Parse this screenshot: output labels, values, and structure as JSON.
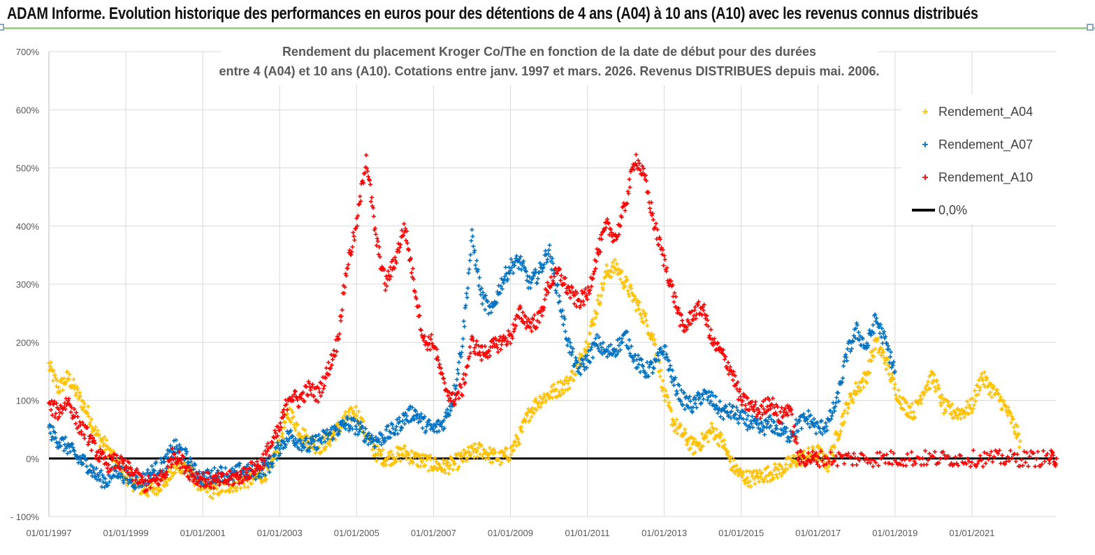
{
  "banner": {
    "title": "ADAM Informe. Evolution historique des performances en euros pour des détentions de 4 ans (A04) à 10 ans (A10) avec les revenus connus distribués"
  },
  "colors": {
    "A04": "#ffc000",
    "A07": "#0070c0",
    "A10": "#ff0000",
    "zero": "#000000",
    "grid": "#d9d9d9",
    "banner_rule": "#9fd47e"
  },
  "chart_data": {
    "type": "scatter",
    "title_line1": "Rendement du placement Kroger Co/The en fonction de la date de début pour des durées",
    "title_line2": "entre 4 (A04) et 10 ans (A10). Cotations entre janv. 1997 et mars. 2026. Revenus DISTRIBUES depuis mai. 2006.",
    "xlim": [
      1997.0,
      2023.2
    ],
    "ylim": [
      -100,
      700
    ],
    "y_ticks": [
      -100,
      0,
      100,
      200,
      300,
      400,
      500,
      600,
      700
    ],
    "y_tick_labels": [
      "- 100%",
      "0%",
      "100%",
      "200%",
      "300%",
      "400%",
      "500%",
      "600%",
      "700%"
    ],
    "x_tick_values": [
      1997,
      1999,
      2001,
      2003,
      2005,
      2007,
      2009,
      2011,
      2013,
      2015,
      2017,
      2019,
      2021
    ],
    "x_tick_labels": [
      "01/01/1997",
      "01/01/1999",
      "01/01/2001",
      "01/01/2003",
      "01/01/2005",
      "01/01/2007",
      "01/01/2009",
      "01/01/2011",
      "01/01/2013",
      "01/01/2015",
      "01/01/2017",
      "01/01/2019",
      "01/01/2021"
    ],
    "legend_position": "top-right",
    "series": [
      {
        "name": "Rendement_A04",
        "legend": "Rendement_A04",
        "marker": "plus",
        "x": [
          1997.0,
          1997.25,
          1997.5,
          1997.75,
          1998.0,
          1998.25,
          1998.5,
          1998.75,
          1999.0,
          1999.25,
          1999.5,
          1999.75,
          2000.0,
          2000.25,
          2000.5,
          2000.75,
          2001.0,
          2001.25,
          2001.5,
          2001.75,
          2002.0,
          2002.25,
          2002.5,
          2002.75,
          2003.0,
          2003.25,
          2003.5,
          2003.75,
          2004.0,
          2004.25,
          2004.5,
          2004.75,
          2005.0,
          2005.25,
          2005.5,
          2005.75,
          2006.0,
          2006.25,
          2006.5,
          2006.75,
          2007.0,
          2007.25,
          2007.5,
          2007.75,
          2008.0,
          2008.25,
          2008.5,
          2008.75,
          2009.0,
          2009.25,
          2009.5,
          2009.75,
          2010.0,
          2010.25,
          2010.5,
          2010.75,
          2011.0,
          2011.25,
          2011.5,
          2011.75,
          2012.0,
          2012.25,
          2012.5,
          2012.75,
          2013.0,
          2013.25,
          2013.5,
          2013.75,
          2014.0,
          2014.25,
          2014.5,
          2014.75,
          2015.0,
          2015.25,
          2015.5,
          2015.75,
          2016.0,
          2016.25,
          2016.5,
          2016.75,
          2017.0,
          2017.25,
          2017.5,
          2017.75,
          2018.0,
          2018.25,
          2018.5,
          2018.75,
          2019.0,
          2019.25,
          2019.5,
          2019.75,
          2020.0,
          2020.25,
          2020.5,
          2020.75,
          2021.0,
          2021.25,
          2021.5,
          2021.75,
          2022.0,
          2022.25
        ],
        "y": [
          160,
          120,
          140,
          110,
          80,
          40,
          20,
          -10,
          -30,
          -45,
          -55,
          -50,
          -40,
          -20,
          -10,
          -30,
          -50,
          -55,
          -50,
          -45,
          -40,
          -35,
          -30,
          -20,
          30,
          80,
          50,
          30,
          20,
          30,
          50,
          70,
          80,
          40,
          10,
          0,
          5,
          10,
          0,
          -5,
          -10,
          -15,
          -10,
          0,
          10,
          15,
          5,
          0,
          10,
          40,
          80,
          100,
          110,
          120,
          130,
          160,
          200,
          260,
          320,
          330,
          300,
          270,
          240,
          200,
          110,
          60,
          40,
          20,
          30,
          50,
          30,
          -10,
          -30,
          -35,
          -30,
          -25,
          -20,
          -10,
          0,
          5,
          10,
          -10,
          40,
          90,
          120,
          140,
          200,
          170,
          120,
          90,
          80,
          120,
          140,
          90,
          80,
          80,
          90,
          140,
          120,
          100,
          70,
          30
        ]
      },
      {
        "name": "Rendement_A07",
        "legend": "Rendement_A07",
        "marker": "plus",
        "x": [
          1997.0,
          1997.25,
          1997.5,
          1997.75,
          1998.0,
          1998.25,
          1998.5,
          1998.75,
          1999.0,
          1999.25,
          1999.5,
          1999.75,
          2000.0,
          2000.25,
          2000.5,
          2000.75,
          2001.0,
          2001.25,
          2001.5,
          2001.75,
          2002.0,
          2002.25,
          2002.5,
          2002.75,
          2003.0,
          2003.25,
          2003.5,
          2003.75,
          2004.0,
          2004.25,
          2004.5,
          2004.75,
          2005.0,
          2005.25,
          2005.5,
          2005.75,
          2006.0,
          2006.25,
          2006.5,
          2006.75,
          2007.0,
          2007.25,
          2007.5,
          2007.75,
          2008.0,
          2008.25,
          2008.5,
          2008.75,
          2009.0,
          2009.25,
          2009.5,
          2009.75,
          2010.0,
          2010.25,
          2010.5,
          2010.75,
          2011.0,
          2011.25,
          2011.5,
          2011.75,
          2012.0,
          2012.25,
          2012.5,
          2012.75,
          2013.0,
          2013.25,
          2013.5,
          2013.75,
          2014.0,
          2014.25,
          2014.5,
          2014.75,
          2015.0,
          2015.25,
          2015.5,
          2015.75,
          2016.0,
          2016.25,
          2016.5,
          2016.75,
          2017.0,
          2017.25,
          2017.5,
          2017.75,
          2018.0,
          2018.25,
          2018.5,
          2018.75,
          2019.0
        ],
        "y": [
          50,
          30,
          20,
          0,
          -10,
          -30,
          -40,
          -20,
          -30,
          -40,
          -35,
          -20,
          -10,
          20,
          10,
          -20,
          -35,
          -30,
          -25,
          -30,
          -20,
          -25,
          -20,
          -10,
          20,
          40,
          30,
          20,
          30,
          40,
          50,
          60,
          55,
          40,
          30,
          40,
          50,
          70,
          80,
          60,
          50,
          60,
          100,
          200,
          380,
          280,
          250,
          300,
          330,
          340,
          300,
          320,
          360,
          280,
          200,
          150,
          170,
          200,
          180,
          190,
          210,
          170,
          150,
          160,
          190,
          130,
          100,
          90,
          110,
          100,
          80,
          80,
          70,
          60,
          50,
          60,
          50,
          40,
          60,
          70,
          50,
          60,
          100,
          180,
          220,
          190,
          240,
          200,
          150
        ]
      },
      {
        "name": "Rendement_A10",
        "legend": "Rendement_A10",
        "marker": "plus",
        "x": [
          1997.0,
          1997.25,
          1997.5,
          1997.75,
          1998.0,
          1998.25,
          1998.5,
          1998.75,
          1999.0,
          1999.25,
          1999.5,
          1999.75,
          2000.0,
          2000.25,
          2000.5,
          2000.75,
          2001.0,
          2001.25,
          2001.5,
          2001.75,
          2002.0,
          2002.25,
          2002.5,
          2002.75,
          2003.0,
          2003.25,
          2003.5,
          2003.75,
          2004.0,
          2004.25,
          2004.5,
          2004.75,
          2005.0,
          2005.25,
          2005.5,
          2005.75,
          2006.0,
          2006.25,
          2006.5,
          2006.75,
          2007.0,
          2007.25,
          2007.5,
          2007.75,
          2008.0,
          2008.25,
          2008.5,
          2008.75,
          2009.0,
          2009.25,
          2009.5,
          2009.75,
          2010.0,
          2010.25,
          2010.5,
          2010.75,
          2011.0,
          2011.25,
          2011.5,
          2011.75,
          2012.0,
          2012.25,
          2012.5,
          2012.75,
          2013.0,
          2013.25,
          2013.5,
          2013.75,
          2014.0,
          2014.25,
          2014.5,
          2014.75,
          2015.0,
          2015.25,
          2015.5,
          2015.75,
          2016.0,
          2016.25,
          2016.5,
          2016.75,
          2017.0,
          2017.5,
          2018.0,
          2018.5,
          2019.0,
          2019.5,
          2020.0,
          2020.5,
          2021.0,
          2021.5,
          2022.0,
          2022.5,
          2023.0,
          2023.2
        ],
        "y": [
          90,
          80,
          100,
          60,
          40,
          10,
          -10,
          -5,
          -15,
          -30,
          -45,
          -40,
          -30,
          10,
          -10,
          -30,
          -35,
          -40,
          -38,
          -35,
          -30,
          -20,
          -10,
          20,
          50,
          110,
          100,
          120,
          110,
          150,
          200,
          330,
          400,
          520,
          380,
          300,
          340,
          400,
          300,
          200,
          200,
          130,
          100,
          120,
          200,
          180,
          190,
          200,
          210,
          250,
          230,
          240,
          300,
          320,
          290,
          270,
          280,
          350,
          400,
          380,
          440,
          520,
          480,
          400,
          340,
          280,
          220,
          250,
          260,
          200,
          180,
          150,
          100,
          90,
          80,
          100,
          70,
          90,
          0,
          0,
          0,
          0,
          0,
          0,
          0,
          0,
          0,
          0,
          0,
          0,
          0,
          0,
          0,
          0
        ]
      },
      {
        "name": "0,0%",
        "legend": "0,0%",
        "marker": "line",
        "x": [
          1997.0,
          2023.2
        ],
        "y": [
          0,
          0
        ]
      }
    ]
  }
}
